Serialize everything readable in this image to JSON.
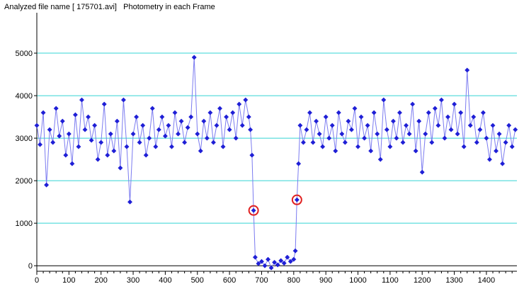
{
  "chart_data": {
    "type": "line",
    "title": "Analyzed file name [ 175701.avi]   Photometry in each Frame",
    "xlabel": "",
    "ylabel": "",
    "xlim": [
      0,
      1495
    ],
    "ylim": [
      -130,
      5950
    ],
    "x_ticks": [
      0,
      100,
      200,
      300,
      400,
      500,
      600,
      700,
      800,
      900,
      1000,
      1100,
      1200,
      1300,
      1400
    ],
    "y_ticks": [
      0,
      1000,
      2000,
      3000,
      4000,
      5000
    ],
    "grid": "horizontal",
    "colors": {
      "series": "#1f1fd6",
      "line": "#7b7bf0",
      "grid": "#35d4d4",
      "highlight": "#e02020"
    },
    "series": [
      {
        "name": "",
        "x": [
          0,
          10,
          20,
          30,
          40,
          50,
          60,
          70,
          80,
          90,
          100,
          110,
          120,
          130,
          140,
          150,
          160,
          170,
          180,
          190,
          200,
          210,
          220,
          230,
          240,
          250,
          260,
          270,
          280,
          290,
          300,
          310,
          320,
          330,
          340,
          350,
          360,
          370,
          380,
          390,
          400,
          410,
          420,
          430,
          440,
          450,
          460,
          470,
          480,
          490,
          500,
          510,
          520,
          530,
          540,
          550,
          560,
          570,
          580,
          590,
          600,
          610,
          620,
          630,
          640,
          650,
          660,
          665,
          670,
          675,
          680,
          690,
          700,
          710,
          720,
          730,
          740,
          750,
          760,
          770,
          780,
          790,
          800,
          805,
          810,
          815,
          820,
          830,
          840,
          850,
          860,
          870,
          880,
          890,
          900,
          910,
          920,
          930,
          940,
          950,
          960,
          970,
          980,
          990,
          1000,
          1010,
          1020,
          1030,
          1040,
          1050,
          1060,
          1070,
          1080,
          1090,
          1100,
          1110,
          1120,
          1130,
          1140,
          1150,
          1160,
          1170,
          1180,
          1190,
          1200,
          1210,
          1220,
          1230,
          1240,
          1250,
          1260,
          1270,
          1280,
          1290,
          1300,
          1310,
          1320,
          1330,
          1340,
          1350,
          1360,
          1370,
          1380,
          1390,
          1400,
          1410,
          1420,
          1430,
          1440,
          1450,
          1460,
          1470,
          1480,
          1490
        ],
        "values": [
          3300,
          2850,
          3600,
          1900,
          3200,
          2900,
          3700,
          3050,
          3400,
          2600,
          3100,
          2400,
          3550,
          2800,
          3900,
          3200,
          3500,
          2950,
          3300,
          2500,
          2900,
          3800,
          2600,
          3100,
          2700,
          3400,
          2300,
          3900,
          2800,
          1500,
          3100,
          3500,
          2900,
          3300,
          2600,
          3000,
          3700,
          2800,
          3200,
          3500,
          3050,
          3300,
          2800,
          3600,
          3100,
          3400,
          2900,
          3250,
          3500,
          4900,
          3100,
          2700,
          3400,
          3000,
          3600,
          2900,
          3300,
          3700,
          2800,
          3500,
          3200,
          3600,
          3000,
          3800,
          3300,
          3900,
          3500,
          3200,
          2600,
          1300,
          200,
          50,
          100,
          0,
          150,
          -50,
          80,
          20,
          120,
          60,
          200,
          100,
          150,
          350,
          1550,
          2400,
          3300,
          2900,
          3200,
          3600,
          2900,
          3400,
          3100,
          2800,
          3500,
          3000,
          3300,
          2700,
          3600,
          3100,
          2900,
          3400,
          3200,
          3700,
          2800,
          3500,
          3000,
          3300,
          2700,
          3600,
          3100,
          2500,
          3900,
          3200,
          2800,
          3400,
          3000,
          3600,
          2900,
          3300,
          3100,
          3800,
          2700,
          3400,
          2200,
          3100,
          3600,
          2900,
          3700,
          3300,
          3900,
          3000,
          3500,
          3200,
          3800,
          3100,
          3600,
          2800,
          4600,
          3300,
          3500,
          2900,
          3200,
          3600,
          3000,
          2500,
          3300,
          2700,
          3100,
          2400,
          2900,
          3300,
          2800,
          3200
        ]
      }
    ],
    "highlights": [
      {
        "x": 675,
        "y": 1300
      },
      {
        "x": 810,
        "y": 1550
      }
    ]
  }
}
